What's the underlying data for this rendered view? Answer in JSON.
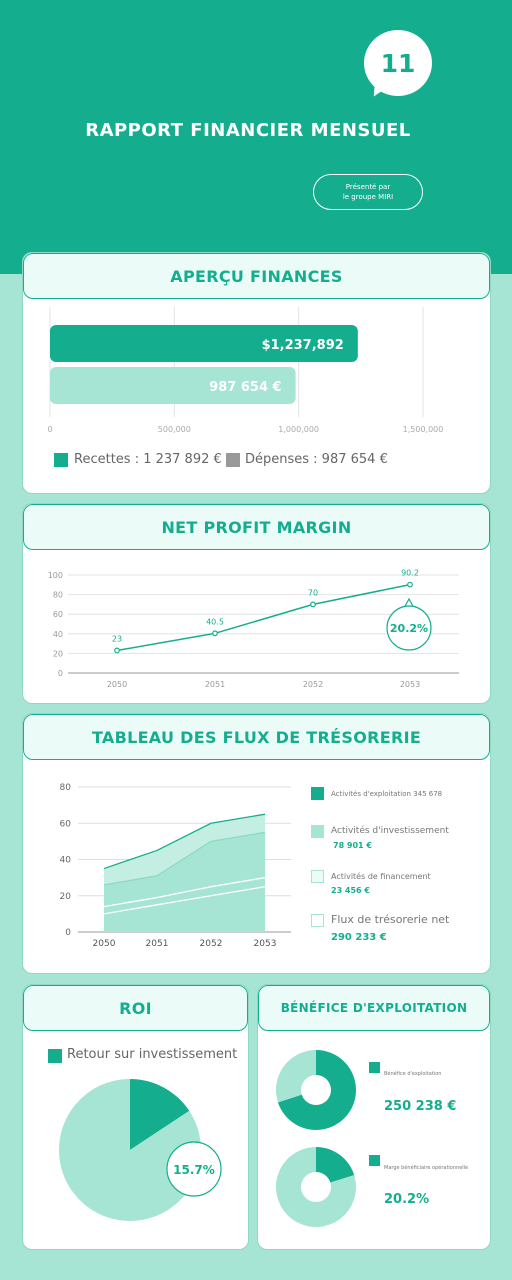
{
  "header": {
    "badge": "11",
    "title": "RAPPORT FINANCIER MENSUEL",
    "presenter_line1": "Présenté par",
    "presenter_line2": "le groupe MIRI"
  },
  "colors": {
    "primary": "#14ae8f",
    "light": "#a6e4d3",
    "pale": "#ebfcf8"
  },
  "finances": {
    "heading": "APERÇU FINANCES",
    "legend_revenue": "Recettes : 1 237 892 €",
    "legend_expense": "Dépenses : 987 654 €"
  },
  "npm": {
    "heading": "NET PROFIT MARGIN",
    "callout": "20.2%"
  },
  "cashflow": {
    "heading": "TABLEAU DES FLUX DE TRÉSORERIE",
    "legend": [
      {
        "label": "Activités d'exploitation 345 678",
        "value": ""
      },
      {
        "label": "Activités d'investissement",
        "value": "78 901 €"
      },
      {
        "label": "Activités de financement",
        "value": "23 456 €"
      },
      {
        "label": "Flux de trésorerie net",
        "value": "290 233 €"
      }
    ]
  },
  "roi": {
    "heading": "ROI",
    "legend": "Retour sur investissement",
    "callout": "15.7%"
  },
  "benefice": {
    "heading": "BÉNÉFICE D'EXPLOITATION",
    "label1": "Bénéfice d'exploitation",
    "value1": "250 238 €",
    "label2": "Marge bénéficiaire opérationnelle",
    "value2": "20.2%"
  },
  "chart_data": [
    {
      "type": "bar",
      "orientation": "horizontal",
      "categories": [
        "Recettes",
        "Dépenses"
      ],
      "values": [
        1237892,
        987654
      ],
      "data_labels": [
        "$1,237,892",
        "987 654 €"
      ],
      "xlim": [
        0,
        1500000
      ],
      "x_ticks": [
        "0",
        "500,000",
        "1,000,000",
        "1,500,000"
      ]
    },
    {
      "type": "line",
      "x": [
        "2050",
        "2051",
        "2052",
        "2053"
      ],
      "values": [
        23,
        40.5,
        70,
        90.2
      ],
      "data_labels": [
        "23",
        "40.5",
        "70",
        "90.2"
      ],
      "ylim": [
        0,
        100
      ],
      "y_ticks": [
        "0",
        "20",
        "40",
        "60",
        "80",
        "100"
      ]
    },
    {
      "type": "area",
      "x": [
        "2050",
        "2051",
        "2052",
        "2053"
      ],
      "ylim": [
        0,
        80
      ],
      "y_ticks": [
        "0",
        "20",
        "40",
        "60",
        "80"
      ],
      "series": [
        {
          "values": [
            35,
            45,
            60,
            65
          ]
        },
        {
          "values": [
            26,
            31,
            50,
            55
          ]
        },
        {
          "values": [
            14,
            19,
            25,
            30
          ]
        },
        {
          "values": [
            10,
            15,
            20,
            25
          ]
        }
      ]
    },
    {
      "type": "pie",
      "values": [
        15.7,
        84.3
      ],
      "label": "15.7%"
    },
    {
      "type": "pie",
      "donut": true,
      "values": [
        70,
        30
      ]
    },
    {
      "type": "pie",
      "donut": true,
      "values": [
        20.2,
        79.8
      ]
    }
  ]
}
